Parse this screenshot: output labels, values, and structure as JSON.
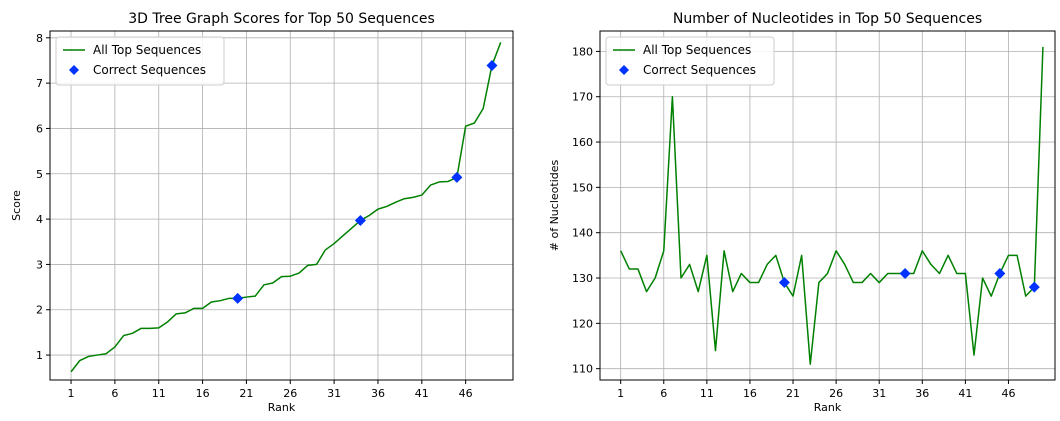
{
  "chart_data": [
    {
      "type": "line",
      "title": "3D Tree Graph Scores for Top 50 Sequences",
      "xlabel": "Rank",
      "ylabel": "Score",
      "xlim": [
        -1.4,
        51.4
      ],
      "ylim": [
        0.45,
        8.15
      ],
      "xticks": [
        1,
        6,
        11,
        16,
        21,
        26,
        31,
        36,
        41,
        46
      ],
      "yticks": [
        1,
        2,
        3,
        4,
        5,
        6,
        7,
        8
      ],
      "grid": true,
      "legend": "top-left",
      "series": [
        {
          "name": "All Top Sequences",
          "color": "#008000",
          "x": [
            1,
            2,
            3,
            4,
            5,
            6,
            7,
            8,
            9,
            10,
            11,
            12,
            13,
            14,
            15,
            16,
            17,
            18,
            19,
            20,
            21,
            22,
            23,
            24,
            25,
            26,
            27,
            28,
            29,
            30,
            31,
            32,
            33,
            34,
            35,
            36,
            37,
            38,
            39,
            40,
            41,
            42,
            43,
            44,
            45,
            46,
            47,
            48,
            49,
            50
          ],
          "values": [
            0.63,
            0.88,
            0.97,
            1.0,
            1.03,
            1.18,
            1.43,
            1.48,
            1.59,
            1.59,
            1.6,
            1.73,
            1.91,
            1.93,
            2.03,
            2.03,
            2.17,
            2.2,
            2.25,
            2.25,
            2.28,
            2.3,
            2.55,
            2.59,
            2.73,
            2.74,
            2.81,
            2.98,
            3.0,
            3.32,
            3.46,
            3.63,
            3.8,
            3.97,
            4.08,
            4.22,
            4.28,
            4.37,
            4.45,
            4.48,
            4.53,
            4.75,
            4.82,
            4.83,
            4.92,
            6.05,
            6.12,
            6.44,
            7.39,
            7.9
          ]
        },
        {
          "name": "Correct Sequences",
          "color": "#0033ff",
          "marker": "diamond",
          "x": [
            20,
            34,
            45,
            49
          ],
          "values": [
            2.25,
            3.97,
            4.92,
            7.39
          ]
        }
      ]
    },
    {
      "type": "line",
      "title": "Number of Nucleotides in Top 50 Sequences",
      "xlabel": "Rank",
      "ylabel": "# of Nucleotides",
      "xlim": [
        -1.4,
        51.4
      ],
      "ylim": [
        107.5,
        184.5
      ],
      "xticks": [
        1,
        6,
        11,
        16,
        21,
        26,
        31,
        36,
        41,
        46
      ],
      "yticks": [
        110,
        120,
        130,
        140,
        150,
        160,
        170,
        180
      ],
      "grid": true,
      "legend": "top-left",
      "series": [
        {
          "name": "All Top Sequences",
          "color": "#008000",
          "x": [
            1,
            2,
            3,
            4,
            5,
            6,
            7,
            8,
            9,
            10,
            11,
            12,
            13,
            14,
            15,
            16,
            17,
            18,
            19,
            20,
            21,
            22,
            23,
            24,
            25,
            26,
            27,
            28,
            29,
            30,
            31,
            32,
            33,
            34,
            35,
            36,
            37,
            38,
            39,
            40,
            41,
            42,
            43,
            44,
            45,
            46,
            47,
            48,
            49,
            50
          ],
          "values": [
            136,
            132,
            132,
            127,
            130,
            136,
            170,
            130,
            133,
            127,
            135,
            114,
            136,
            127,
            131,
            129,
            129,
            133,
            135,
            129,
            126,
            135,
            111,
            129,
            131,
            136,
            133,
            129,
            129,
            131,
            129,
            131,
            131,
            131,
            131,
            136,
            133,
            131,
            135,
            131,
            131,
            113,
            130,
            126,
            131,
            135,
            135,
            126,
            128,
            181
          ]
        },
        {
          "name": "Correct Sequences",
          "color": "#0033ff",
          "marker": "diamond",
          "x": [
            20,
            34,
            45,
            49
          ],
          "values": [
            129,
            131,
            131,
            128
          ]
        }
      ]
    }
  ]
}
